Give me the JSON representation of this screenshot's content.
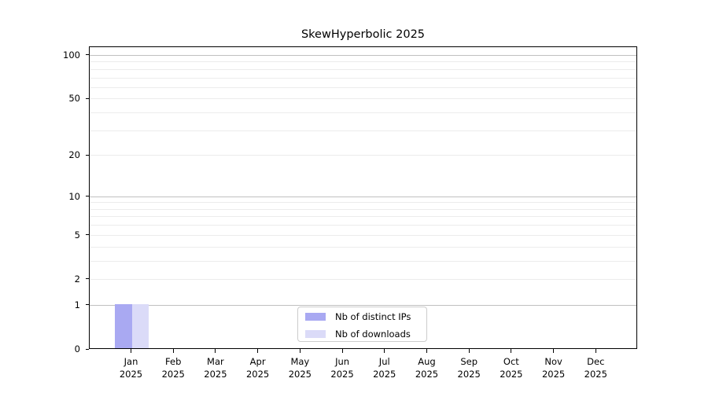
{
  "title": "SkewHyperbolic 2025",
  "chart_data": {
    "type": "bar",
    "title": "SkewHyperbolic 2025",
    "x_year": "2025",
    "x_months": [
      "Jan",
      "Feb",
      "Mar",
      "Apr",
      "May",
      "Jun",
      "Jul",
      "Aug",
      "Sep",
      "Oct",
      "Nov",
      "Dec"
    ],
    "y_scale": "log10(1+x)",
    "ylim": [
      0,
      115
    ],
    "y_ticks": [
      0,
      1,
      2,
      5,
      10,
      20,
      50,
      100
    ],
    "major_gridlines": [
      1,
      10,
      100
    ],
    "minor_gridlines": [
      2,
      3,
      4,
      5,
      6,
      7,
      8,
      9,
      20,
      30,
      40,
      50,
      60,
      70,
      80,
      90
    ],
    "grid": true,
    "legend_position": "lower center",
    "series": [
      {
        "name": "Nb of distinct IPs",
        "color": "#a9a9f2",
        "values": [
          1,
          0,
          0,
          0,
          0,
          0,
          0,
          0,
          0,
          0,
          0,
          0
        ]
      },
      {
        "name": "Nb of downloads",
        "color": "#dbdbf8",
        "values": [
          1,
          0,
          0,
          0,
          0,
          0,
          0,
          0,
          0,
          0,
          0,
          0
        ]
      }
    ]
  }
}
